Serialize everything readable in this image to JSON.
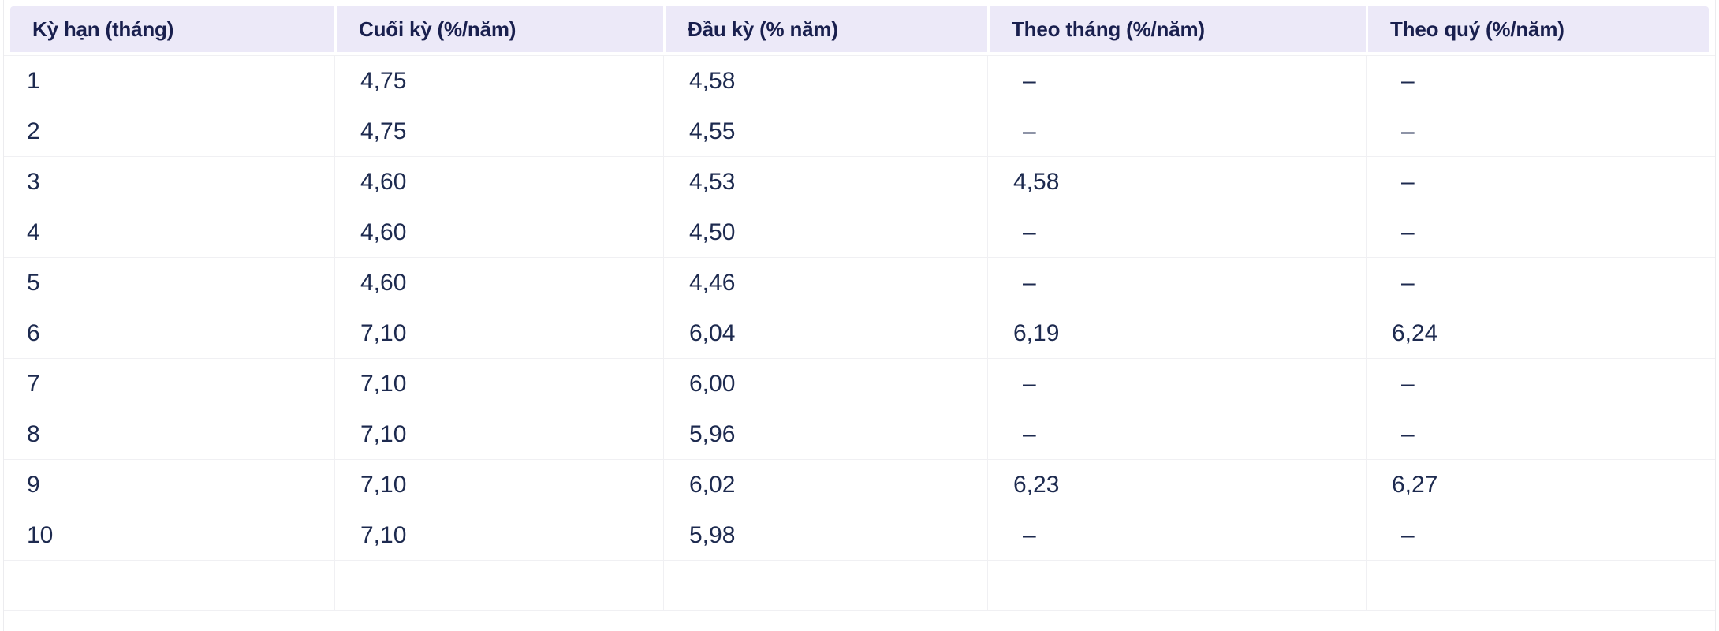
{
  "colors": {
    "background": "#FFFFFF",
    "card_border": "#ECECEF",
    "header_bg": "#ECE9F8",
    "header_text": "#191F4E",
    "body_text": "#1D2A4F",
    "divider": "#F0F0F3"
  },
  "table": {
    "empty_value": "–",
    "columns": [
      {
        "id": "term",
        "label": "Kỳ hạn (tháng)"
      },
      {
        "id": "end_of_term",
        "label": "Cuối kỳ (%/năm)"
      },
      {
        "id": "start_of_term",
        "label": "Đầu kỳ (% năm)"
      },
      {
        "id": "monthly",
        "label": "Theo tháng (%/năm)"
      },
      {
        "id": "quarterly",
        "label": "Theo quý (%/năm)"
      }
    ],
    "rows": [
      [
        "1",
        "4,75",
        "4,58",
        "–",
        "–"
      ],
      [
        "2",
        "4,75",
        "4,55",
        "–",
        "–"
      ],
      [
        "3",
        "4,60",
        "4,53",
        "4,58",
        "–"
      ],
      [
        "4",
        "4,60",
        "4,50",
        "–",
        "–"
      ],
      [
        "5",
        "4,60",
        "4,46",
        "–",
        "–"
      ],
      [
        "6",
        "7,10",
        "6,04",
        "6,19",
        "6,24"
      ],
      [
        "7",
        "7,10",
        "6,00",
        "–",
        "–"
      ],
      [
        "8",
        "7,10",
        "5,96",
        "–",
        "–"
      ],
      [
        "9",
        "7,10",
        "6,02",
        "6,23",
        "6,27"
      ],
      [
        "10",
        "7,10",
        "5,98",
        "–",
        "–"
      ]
    ]
  }
}
